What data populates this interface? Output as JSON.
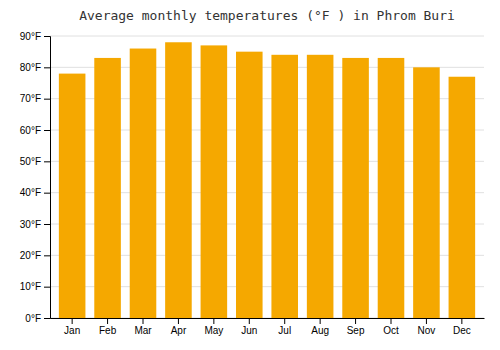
{
  "chart_data": {
    "type": "bar",
    "title": "Average monthly temperatures (°F ) in Phrom Buri",
    "categories": [
      "Jan",
      "Feb",
      "Mar",
      "Apr",
      "May",
      "Jun",
      "Jul",
      "Aug",
      "Sep",
      "Oct",
      "Nov",
      "Dec"
    ],
    "values": [
      78,
      83,
      86,
      88,
      87,
      85,
      84,
      84,
      83,
      83,
      80,
      77
    ],
    "color": "#F5A800",
    "ylim": [
      0,
      90
    ],
    "yticks": [
      {
        "value": 0,
        "label": "0°F"
      },
      {
        "value": 10,
        "label": "10°F"
      },
      {
        "value": 20,
        "label": "20°F"
      },
      {
        "value": 30,
        "label": "30°F"
      },
      {
        "value": 40,
        "label": "40°F"
      },
      {
        "value": 50,
        "label": "50°F"
      },
      {
        "value": 60,
        "label": "60°F"
      },
      {
        "value": 70,
        "label": "70°F"
      },
      {
        "value": 80,
        "label": "80°F"
      },
      {
        "value": 90,
        "label": "90°F"
      }
    ],
    "grid": true
  }
}
